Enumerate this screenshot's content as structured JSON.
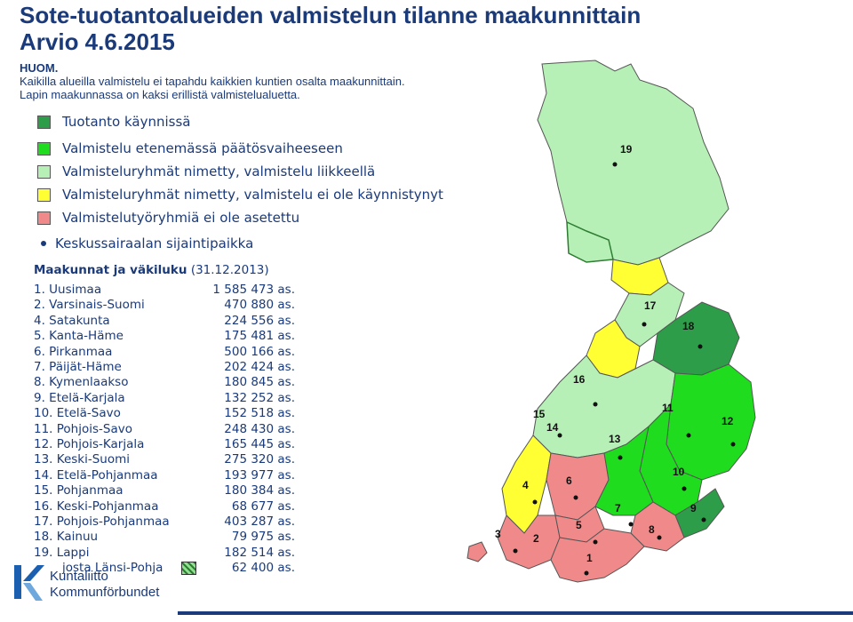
{
  "title_line1": "Sote-tuotantoalueiden valmistelun tilanne maakunnittain",
  "title_line2": "Arvio 4.6.2015",
  "note": {
    "heading": "HUOM.",
    "line1": "Kaikilla alueilla valmistelu ei tapahdu kaikkien kuntien osalta maakunnittain.",
    "line2": "Lapin maakunnassa on kaksi erillistä valmistelualuetta."
  },
  "legend": [
    {
      "label": "Tuotanto käynnissä",
      "color": "#2e9d4a"
    },
    {
      "label": "Valmistelu etenemässä päätösvaiheeseen",
      "color": "#1fdc1f"
    },
    {
      "label": "Valmisteluryhmät nimetty, valmistelu liikkeellä",
      "color": "#b6f0b6"
    },
    {
      "label": "Valmisteluryhmät nimetty, valmistelu ei ole käynnistynyt",
      "color": "#ffff33"
    },
    {
      "label": "Valmistelutyöryhmiä ei ole asetettu",
      "color": "#f08a8a"
    }
  ],
  "hospital_legend": "Keskussairaalan sijaintipaikka",
  "regions_header": {
    "bold": "Maakunnat ja väkiluku",
    "date": "(31.12.2013)"
  },
  "regions": [
    {
      "name": "1. Uusimaa",
      "pop": "1 585 473 as."
    },
    {
      "name": "2. Varsinais-Suomi",
      "pop": "470 880 as."
    },
    {
      "name": "4. Satakunta",
      "pop": "224 556 as."
    },
    {
      "name": "5. Kanta-Häme",
      "pop": "175 481 as."
    },
    {
      "name": "6. Pirkanmaa",
      "pop": "500 166 as."
    },
    {
      "name": "7. Päijät-Häme",
      "pop": "202 424 as."
    },
    {
      "name": "8. Kymenlaakso",
      "pop": "180 845 as."
    },
    {
      "name": "9. Etelä-Karjala",
      "pop": "132 252 as."
    },
    {
      "name": "10. Etelä-Savo",
      "pop": "152 518 as."
    },
    {
      "name": "11. Pohjois-Savo",
      "pop": "248 430 as."
    },
    {
      "name": "12. Pohjois-Karjala",
      "pop": "165 445 as."
    },
    {
      "name": "13. Keski-Suomi",
      "pop": "275 320 as."
    },
    {
      "name": "14. Etelä-Pohjanmaa",
      "pop": "193 977 as."
    },
    {
      "name": "15. Pohjanmaa",
      "pop": "180 384 as."
    },
    {
      "name": "16. Keski-Pohjanmaa",
      "pop": "68 677 as."
    },
    {
      "name": "17. Pohjois-Pohjanmaa",
      "pop": "403 287 as."
    },
    {
      "name": "18. Kainuu",
      "pop": "79 975 as."
    },
    {
      "name": "19. Lappi",
      "pop": "182 514 as."
    },
    {
      "name": "josta Länsi-Pohja",
      "pop": "62 400 as."
    }
  ],
  "map_labels": [
    "19",
    "17",
    "18",
    "16",
    "15",
    "14",
    "13",
    "11",
    "12",
    "10",
    "4",
    "6",
    "3",
    "2",
    "5",
    "7",
    "8",
    "9",
    "1"
  ],
  "logo": {
    "line1": "Kuntaliitto",
    "line2": "Kommunförbundet"
  }
}
